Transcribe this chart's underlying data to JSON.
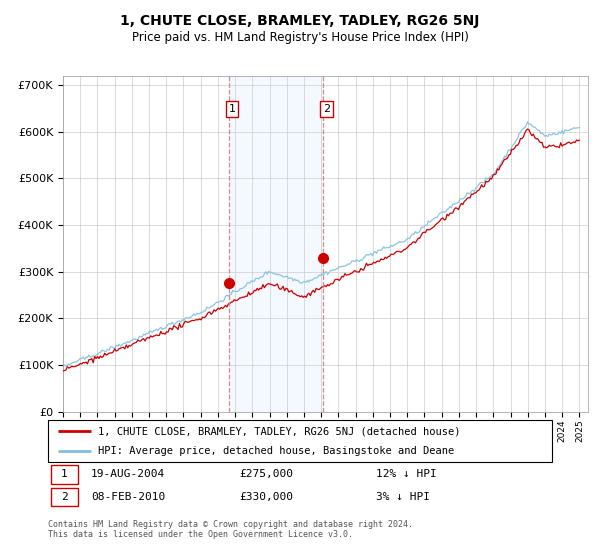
{
  "title": "1, CHUTE CLOSE, BRAMLEY, TADLEY, RG26 5NJ",
  "subtitle": "Price paid vs. HM Land Registry's House Price Index (HPI)",
  "ylim": [
    0,
    720000
  ],
  "yticks": [
    0,
    100000,
    200000,
    300000,
    400000,
    500000,
    600000,
    700000
  ],
  "ytick_labels": [
    "£0",
    "£100K",
    "£200K",
    "£300K",
    "£400K",
    "£500K",
    "£600K",
    "£700K"
  ],
  "sale1_year": 2004.63,
  "sale1_price": 275000,
  "sale1_label": "1",
  "sale1_date": "19-AUG-2004",
  "sale1_hpi_diff": "12% ↓ HPI",
  "sale2_year": 2010.1,
  "sale2_price": 330000,
  "sale2_label": "2",
  "sale2_date": "08-FEB-2010",
  "sale2_hpi_diff": "3% ↓ HPI",
  "hpi_color": "#7fbfdf",
  "price_color": "#cc0000",
  "shade_color": "#ddeeff",
  "vline_color": "#dd8888",
  "legend_line1": "1, CHUTE CLOSE, BRAMLEY, TADLEY, RG26 5NJ (detached house)",
  "legend_line2": "HPI: Average price, detached house, Basingstoke and Deane",
  "footnote": "Contains HM Land Registry data © Crown copyright and database right 2024.\nThis data is licensed under the Open Government Licence v3.0.",
  "background_color": "#ffffff",
  "grid_color": "#cccccc"
}
